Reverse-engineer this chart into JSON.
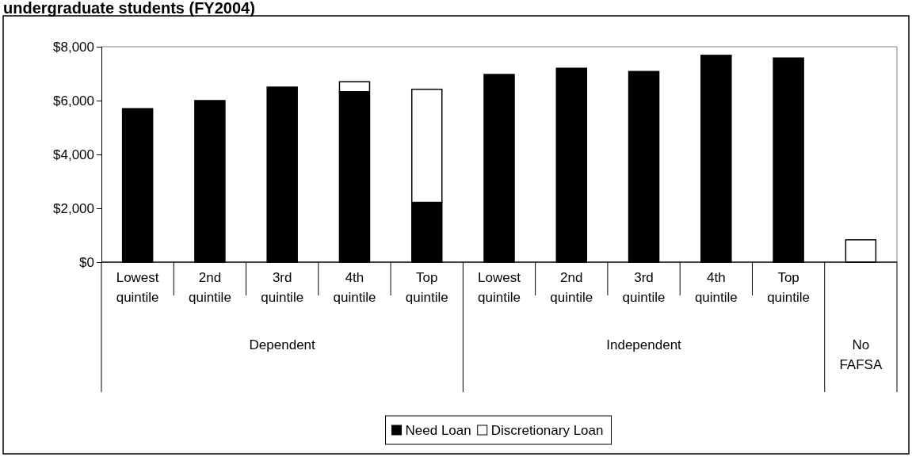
{
  "chart_data": {
    "type": "bar",
    "title": "undergraduate students (FY2004)",
    "stacked": true,
    "categories": [
      "Lowest quintile",
      "2nd quintile",
      "3rd quintile",
      "4th quintile",
      "Top quintile",
      "Lowest quintile",
      "2nd quintile",
      "3rd quintile",
      "4th quintile",
      "Top quintile",
      null
    ],
    "series": [
      {
        "name": "Need Loan",
        "color": "#000000",
        "values": [
          5700,
          6000,
          6500,
          6330,
          2220,
          6970,
          7200,
          7080,
          7680,
          7580,
          0
        ]
      },
      {
        "name": "Discretionary Loan",
        "color": "#ffffff",
        "values": [
          0,
          0,
          0,
          370,
          4200,
          0,
          0,
          0,
          0,
          0,
          830
        ]
      }
    ],
    "ylim": [
      0,
      8000
    ],
    "yticks": [
      {
        "value": 0,
        "label": "$0"
      },
      {
        "value": 2000,
        "label": "$2,000"
      },
      {
        "value": 4000,
        "label": "$4,000"
      },
      {
        "value": 6000,
        "label": "$6,000"
      },
      {
        "value": 8000,
        "label": "$8,000"
      }
    ],
    "grid": false,
    "legend": "bottom",
    "annotations": [
      "Dependent",
      "Independent",
      "No FAFSA"
    ]
  }
}
